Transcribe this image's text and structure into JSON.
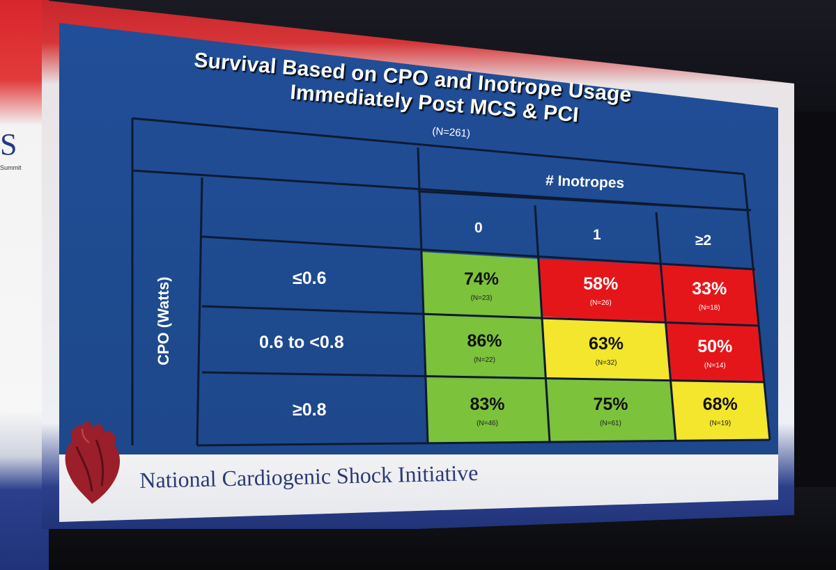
{
  "slide": {
    "title_line1": "Survival Based on CPO and Inotrope Usage",
    "title_line2": "Immediately Post MCS & PCI",
    "subtitle": "(N=261)",
    "column_group_header": "# Inotropes",
    "row_axis_label": "CPO (Watts)",
    "columns": [
      "0",
      "1",
      "≥2"
    ],
    "rows": [
      {
        "label": "≤0.6",
        "cells": [
          {
            "pct": "74%",
            "n": "(N=23)",
            "color": "green"
          },
          {
            "pct": "58%",
            "n": "(N=26)",
            "color": "red"
          },
          {
            "pct": "33%",
            "n": "(N=18)",
            "color": "red"
          }
        ]
      },
      {
        "label": "0.6 to <0.8",
        "cells": [
          {
            "pct": "86%",
            "n": "(N=22)",
            "color": "green"
          },
          {
            "pct": "63%",
            "n": "(N=32)",
            "color": "yellow"
          },
          {
            "pct": "50%",
            "n": "(N=14)",
            "color": "red"
          }
        ]
      },
      {
        "label": "≥0.8",
        "cells": [
          {
            "pct": "83%",
            "n": "(N=46)",
            "color": "green"
          },
          {
            "pct": "75%",
            "n": "(N=61)",
            "color": "green"
          },
          {
            "pct": "68%",
            "n": "(N=19)",
            "color": "yellow"
          }
        ]
      }
    ],
    "footer": "National Cardiogenic Shock Initiative",
    "colors": {
      "green": "#7cc23b",
      "red": "#e5161a",
      "yellow": "#f3e62c",
      "slide_blue": "#1f4a8f"
    }
  },
  "banner": {
    "brand_letter": "S",
    "brand_sub": "Summit"
  },
  "icons": {
    "logo": "heart-icon"
  }
}
